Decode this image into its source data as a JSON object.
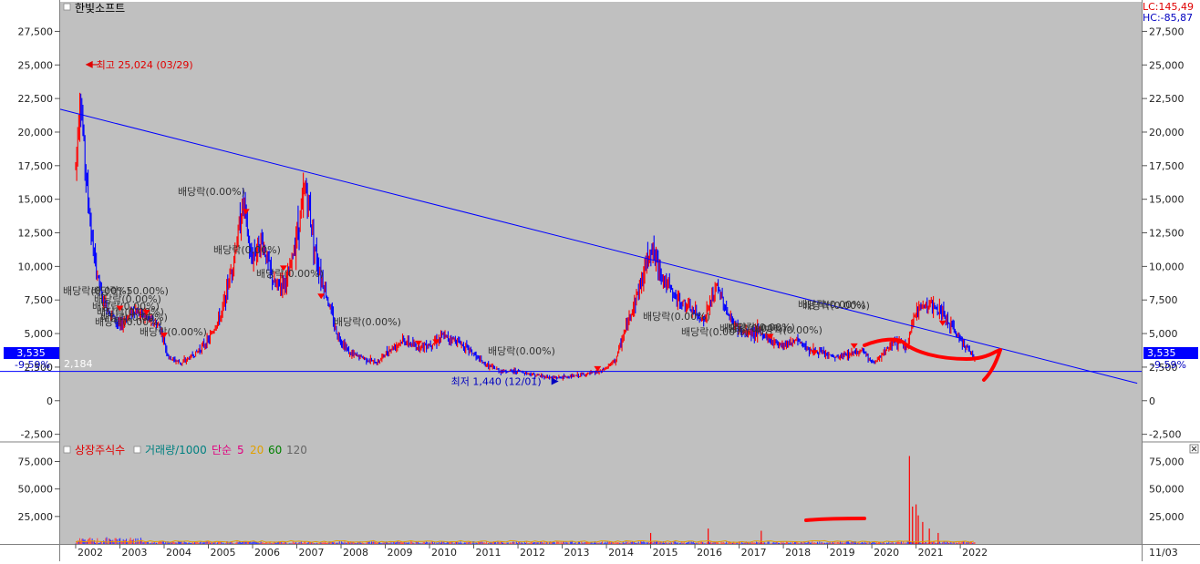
{
  "window": {
    "title": "한빛소프트",
    "lc_label": "LC:145,49",
    "hc_label": "HC:-85,87",
    "corner_date": "11/03"
  },
  "colors": {
    "plot_bg": "#c0c0c0",
    "panel_bg": "#ffffff",
    "candle_up": "#ff0000",
    "candle_down": "#0000ff",
    "trendline": "#0000ff",
    "current_price_box": "#0000ff",
    "drawing_pen": "#ff0000"
  },
  "price_panel": {
    "current_price_label": "3,535",
    "support_pct_label": "-9.59%",
    "support_value_label": "2,184",
    "high_annotation": "최고 25,024 (03/29)",
    "low_annotation": "최저 1,440 (12/01)",
    "dividend_labels": [
      "배당락(0.00%)",
      "배당락(0.00%)",
      "배당락(0.00%)",
      "배당락(0.00%)",
      "배당락(0.00%)",
      "배당락(0.00%)",
      "배당락(0.00%)",
      "배당락(0.00%)",
      "배당락(0.00%)",
      "배당락(0.00%)",
      "배당락(0.00%)",
      "배당락(0.00%)",
      "배당락(0.00%)"
    ],
    "cluster_labels": [
      "배당락(0.00%)",
      "배당락(-50.00%)",
      "배당락(0.00%)",
      "배당락(0.00%)",
      "배당락(0.00%)",
      "배당락(0.00%)",
      "배당락(0.00%)"
    ]
  },
  "volume_panel": {
    "legend": [
      {
        "text": "상장주식수",
        "color": "#e00000"
      },
      {
        "text": "거래량/1000",
        "color": "#008080"
      },
      {
        "text": "단순",
        "color": "#e0007f"
      },
      {
        "text": "5",
        "color": "#e0007f"
      },
      {
        "text": "20",
        "color": "#e0a000"
      },
      {
        "text": "60",
        "color": "#008000"
      },
      {
        "text": "120",
        "color": "#666666"
      }
    ]
  },
  "chart_data": [
    {
      "type": "line",
      "series": [
        {
          "x": [
            2002.0,
            2002.1,
            2002.25,
            2002.4,
            2002.6,
            2002.8,
            2003.0,
            2003.3,
            2003.6,
            2003.9,
            2004.1,
            2004.4,
            2004.7,
            2005.0,
            2005.3,
            2005.6,
            2005.8,
            2005.95,
            2006.2,
            2006.5,
            2006.8,
            2007.0,
            2007.2,
            2007.45,
            2007.7,
            2007.9,
            2008.2,
            2008.5,
            2008.8,
            2009.1,
            2009.4,
            2009.7,
            2010.0,
            2010.3,
            2010.6,
            2010.9,
            2011.2,
            2011.6,
            2012.0,
            2012.4,
            2012.8,
            2013.2,
            2013.6,
            2013.9,
            2014.2,
            2014.5,
            2014.8,
            2015.0,
            2015.3,
            2015.6,
            2015.9,
            2016.2,
            2016.5,
            2016.8,
            2017.1,
            2017.4,
            2017.7,
            2018.0,
            2018.3,
            2018.6,
            2018.9,
            2019.2,
            2019.5,
            2019.8,
            2020.0,
            2020.2,
            2020.5,
            2020.8,
            2021.0,
            2021.3,
            2021.6,
            2021.9,
            2022.1,
            2022.35
          ],
          "values": [
            17500,
            23000,
            16000,
            11000,
            7500,
            6500,
            5500,
            6800,
            6200,
            5500,
            3200,
            2800,
            3500,
            4500,
            6500,
            11000,
            15000,
            10500,
            12000,
            8500,
            9000,
            12500,
            16000,
            10500,
            7500,
            5000,
            3500,
            3200,
            2800,
            3800,
            4500,
            4000,
            4200,
            4800,
            4500,
            3800,
            2800,
            2200,
            2200,
            1900,
            1700,
            1800,
            2000,
            2200,
            3000,
            6000,
            9000,
            11500,
            9000,
            7500,
            6800,
            6000,
            8500,
            6000,
            5000,
            5200,
            4500,
            4200,
            4500,
            3800,
            3500,
            3200,
            3500,
            3800,
            2800,
            3200,
            4500,
            4000,
            6800,
            7200,
            6500,
            5000,
            4200,
            3000
          ]
        }
      ],
      "title": "한빛소프트",
      "xlabel": "",
      "ylabel": "",
      "xlim": [
        2001.65,
        2026.1
      ],
      "ylim": [
        -3000,
        29700
      ],
      "y_ticks": [
        -2500,
        0,
        2500,
        5000,
        7500,
        10000,
        12500,
        15000,
        17500,
        20000,
        22500,
        25000,
        27500
      ],
      "y_tick_labels": [
        "-2,500",
        "0",
        "2,500",
        "5,000",
        "7,500",
        "10,000",
        "12,500",
        "15,000",
        "17,500",
        "20,000",
        "22,500",
        "25,000",
        "27,500"
      ],
      "x_tick_labels": [
        "2002",
        "2003",
        "2004",
        "2005",
        "2006",
        "2007",
        "2008",
        "2009",
        "2010",
        "2011",
        "2012",
        "2013",
        "2014",
        "2015",
        "2016",
        "2017",
        "2018",
        "2019",
        "2020",
        "2021",
        "2022"
      ],
      "high": {
        "x": 2002.22,
        "value": 25024
      },
      "low": {
        "x": 2012.92,
        "value": 1440
      },
      "trendline": {
        "x": [
          2001.65,
          2026.0
        ],
        "values": [
          21700,
          1300
        ]
      },
      "support_line": 2184,
      "current_price": 3535,
      "grid": false,
      "legend": "none"
    },
    {
      "type": "bar",
      "title": "",
      "xlim": [
        2001.65,
        2026.1
      ],
      "ylim": [
        0,
        92000
      ],
      "y_ticks": [
        25000,
        50000,
        75000
      ],
      "y_tick_labels": [
        "25,000",
        "50,000",
        "75,000"
      ],
      "x": [
        2020.85,
        2020.92,
        2021.0,
        2021.05,
        2021.15,
        2021.3,
        2021.5,
        2016.3,
        2017.5,
        2015.0
      ],
      "values": [
        80000,
        34000,
        36000,
        26000,
        20000,
        14000,
        10000,
        14000,
        12000,
        10000
      ]
    }
  ]
}
